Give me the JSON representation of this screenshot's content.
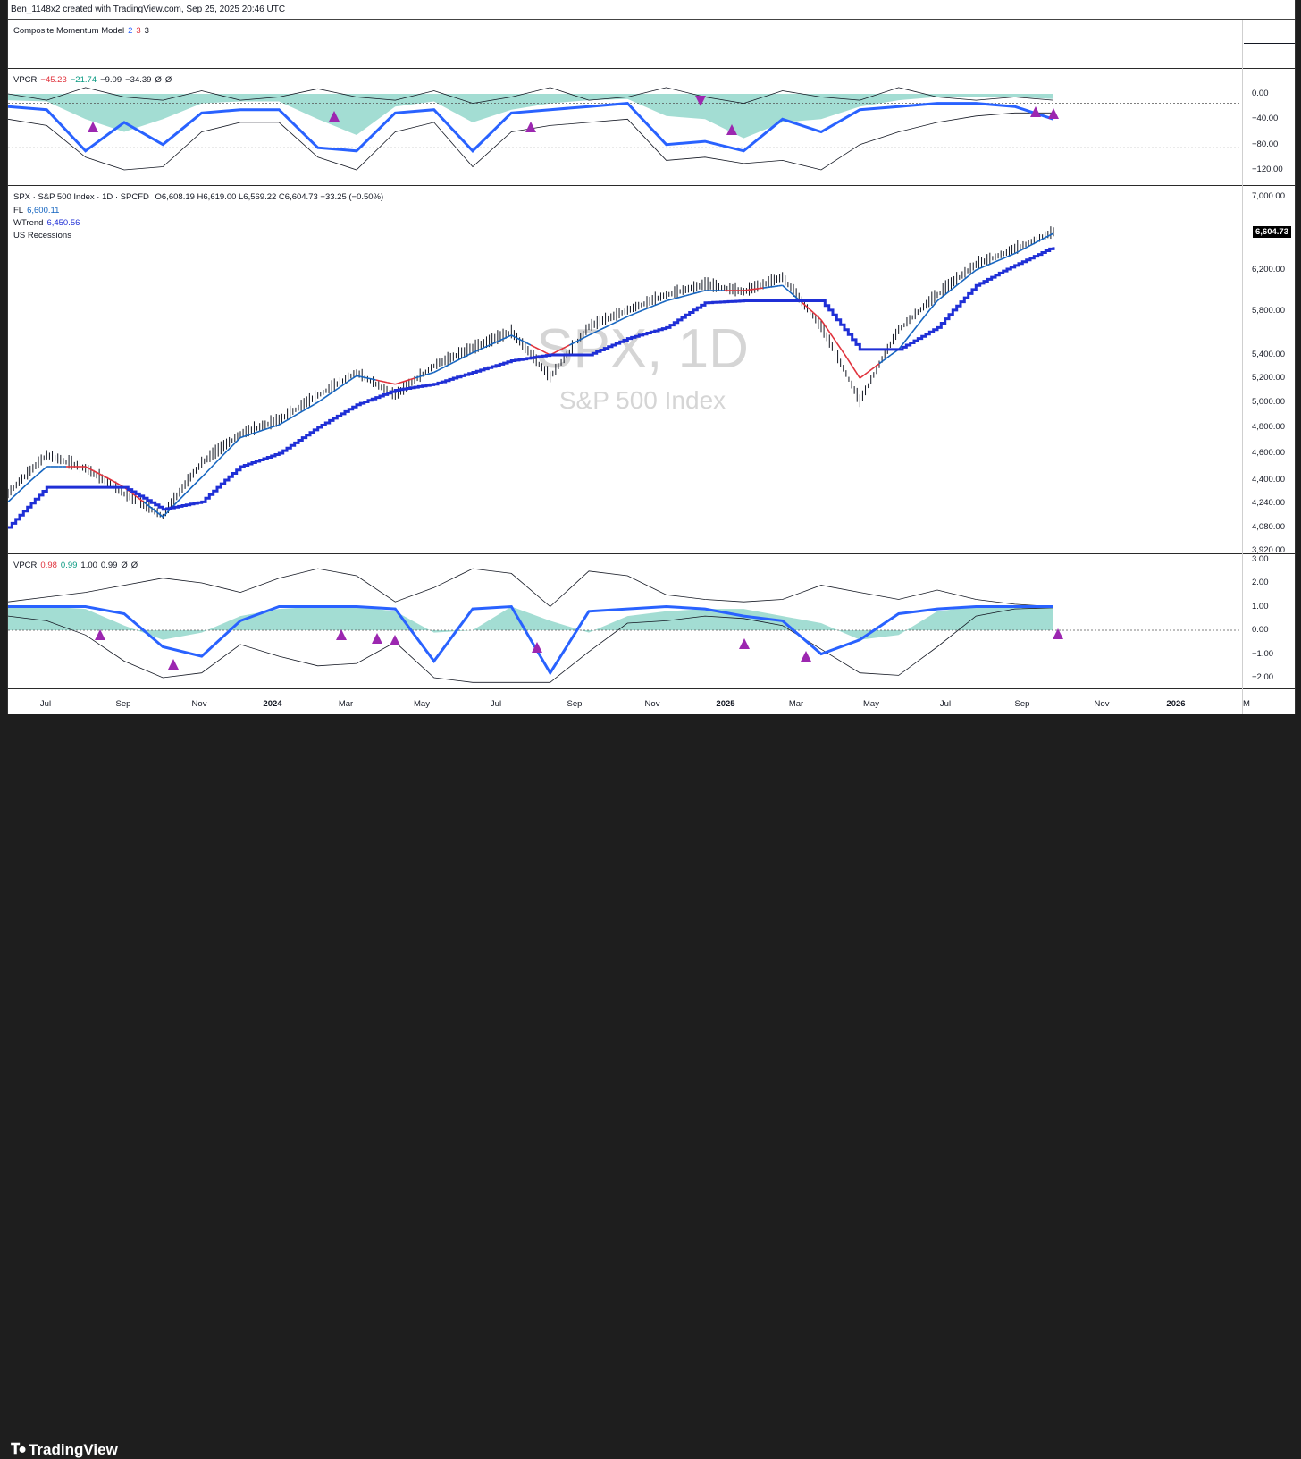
{
  "header": {
    "text": "Ben_1148x2 created with TradingView.com, Sep 25, 2025 20:46 UTC"
  },
  "pane_cmm": {
    "label": "Composite Momentum Model",
    "v1": "2",
    "v2": "3",
    "v3": "3"
  },
  "pane_vpcr_top": {
    "name": "VPCR",
    "values": [
      {
        "text": "−45.23",
        "color": "#e0323c"
      },
      {
        "text": "−21.74",
        "color": "#089981"
      },
      {
        "text": "−9.09",
        "color": "#131722"
      },
      {
        "text": "−34.39",
        "color": "#131722"
      },
      {
        "text": "Ø",
        "color": "#131722"
      },
      {
        "text": "Ø",
        "color": "#131722"
      }
    ],
    "ticks": [
      "0.00",
      "−40.00",
      "−80.00",
      "−120.00"
    ]
  },
  "pane_price": {
    "title": "SPX · S&P 500 Index · 1D · SPCFD",
    "ohlc": "O6,608.19  H6,619.00  L6,569.22  C6,604.73  −33.25 (−0.50%)",
    "fl_label": "FL",
    "fl_value": "6,600.11",
    "wtrend_label": "WTrend",
    "wtrend_value": "6,450.56",
    "recessions": "US Recessions",
    "last_price": "6,604.73",
    "watermark_symbol": "SPX, 1D",
    "watermark_name": "S&P 500 Index",
    "ticks": [
      "7,000.00",
      "6,200.00",
      "5,800.00",
      "5,400.00",
      "5,200.00",
      "5,000.00",
      "4,800.00",
      "4,600.00",
      "4,400.00",
      "4,240.00",
      "4,080.00",
      "3,920.00"
    ]
  },
  "pane_vpcr_bottom": {
    "name": "VPCR",
    "values": [
      {
        "text": "0.98",
        "color": "#e0323c"
      },
      {
        "text": "0.99",
        "color": "#089981"
      },
      {
        "text": "1.00",
        "color": "#131722"
      },
      {
        "text": "0.99",
        "color": "#131722"
      },
      {
        "text": "Ø",
        "color": "#131722"
      },
      {
        "text": "Ø",
        "color": "#131722"
      }
    ],
    "ticks": [
      "3.00",
      "2.00",
      "1.00",
      "0.00",
      "−1.00",
      "−2.00"
    ]
  },
  "x_axis": {
    "labels": [
      {
        "t": "Jul",
        "bold": false
      },
      {
        "t": "Sep",
        "bold": false
      },
      {
        "t": "Nov",
        "bold": false
      },
      {
        "t": "2024",
        "bold": true
      },
      {
        "t": "Mar",
        "bold": false
      },
      {
        "t": "May",
        "bold": false
      },
      {
        "t": "Jul",
        "bold": false
      },
      {
        "t": "Sep",
        "bold": false
      },
      {
        "t": "Nov",
        "bold": false
      },
      {
        "t": "2025",
        "bold": true
      },
      {
        "t": "Mar",
        "bold": false
      },
      {
        "t": "May",
        "bold": false
      },
      {
        "t": "Jul",
        "bold": false
      },
      {
        "t": "Sep",
        "bold": false
      },
      {
        "t": "Nov",
        "bold": false
      },
      {
        "t": "2026",
        "bold": true
      },
      {
        "t": "M",
        "bold": false
      }
    ]
  },
  "footer": {
    "brand": "TradingView"
  },
  "colors": {
    "fl": "#1565c0",
    "wtrend": "#1f2fd6",
    "down": "#e0323c",
    "fill": "#7ccfc0",
    "signal": "#9c27b0",
    "main_line": "#2962ff"
  },
  "chart_data": {
    "type": "line",
    "title": "SPX, 1D",
    "x": [
      "2023-06",
      "2023-07",
      "2023-08",
      "2023-09",
      "2023-10",
      "2023-11",
      "2023-12",
      "2024-01",
      "2024-02",
      "2024-03",
      "2024-04",
      "2024-05",
      "2024-06",
      "2024-07",
      "2024-08",
      "2024-09",
      "2024-10",
      "2024-11",
      "2024-12",
      "2025-01",
      "2025-02",
      "2025-03",
      "2025-04",
      "2025-05",
      "2025-06",
      "2025-07",
      "2025-08",
      "2025-09"
    ],
    "series": [
      {
        "name": "SPX",
        "values": [
          4300,
          4580,
          4480,
          4300,
          4150,
          4520,
          4740,
          4850,
          5050,
          5240,
          5050,
          5300,
          5450,
          5600,
          5200,
          5650,
          5800,
          5950,
          6050,
          5980,
          6120,
          5650,
          5000,
          5620,
          5950,
          6250,
          6420,
          6605
        ]
      },
      {
        "name": "FL",
        "values": [
          4250,
          4500,
          4500,
          4350,
          4150,
          4420,
          4720,
          4820,
          5000,
          5220,
          5150,
          5250,
          5420,
          5580,
          5400,
          5580,
          5750,
          5900,
          6000,
          6000,
          6050,
          5720,
          5200,
          5450,
          5900,
          6200,
          6380,
          6600
        ]
      },
      {
        "name": "WTrend",
        "values": [
          4080,
          4350,
          4350,
          4350,
          4200,
          4250,
          4500,
          4600,
          4800,
          4980,
          5100,
          5150,
          5250,
          5350,
          5400,
          5400,
          5550,
          5650,
          5880,
          5900,
          5900,
          5900,
          5450,
          5450,
          5650,
          6050,
          6250,
          6450
        ]
      }
    ],
    "ylim": [
      3920,
      7000
    ],
    "vpcr_top": {
      "ylim": [
        -130,
        10
      ]
    },
    "vpcr_bottom": {
      "ylim": [
        -2.5,
        3
      ]
    }
  }
}
